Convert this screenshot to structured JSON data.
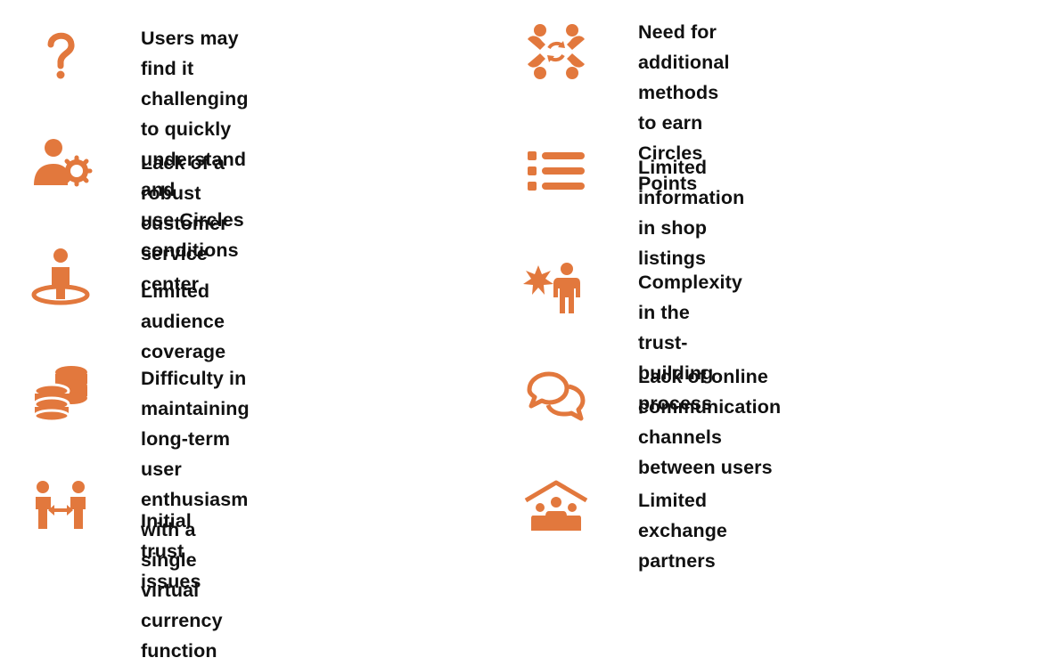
{
  "colors": {
    "accent": "#E2783D",
    "text": "#111111",
    "background": "#FFFFFF"
  },
  "left_column": [
    {
      "icon": "question-mark-icon",
      "text": "Users may find it challenging\nto quickly understand and\nuse Circles conditions"
    },
    {
      "icon": "user-gear-icon",
      "text": "Lack of a robust customer\nservice center"
    },
    {
      "icon": "user-location-icon",
      "text": "Limited audience coverage"
    },
    {
      "icon": "coins-stack-icon",
      "text": "Difficulty in maintaining long-term\nuser enthusiasm with a single\nvirtual currency function"
    },
    {
      "icon": "people-exchange-icon",
      "text": "Initial trust issues"
    }
  ],
  "right_column": [
    {
      "icon": "circular-teamwork-icon",
      "text": "Need for additional methods\nto earn Circles Points"
    },
    {
      "icon": "list-icon",
      "text": "Limited information in shop listings"
    },
    {
      "icon": "person-spark-icon",
      "text": "Complexity in the trust-building process"
    },
    {
      "icon": "chat-bubbles-icon",
      "text": "Lack of online communication\nchannels between users"
    },
    {
      "icon": "family-house-icon",
      "text": "Limited exchange partners"
    }
  ]
}
